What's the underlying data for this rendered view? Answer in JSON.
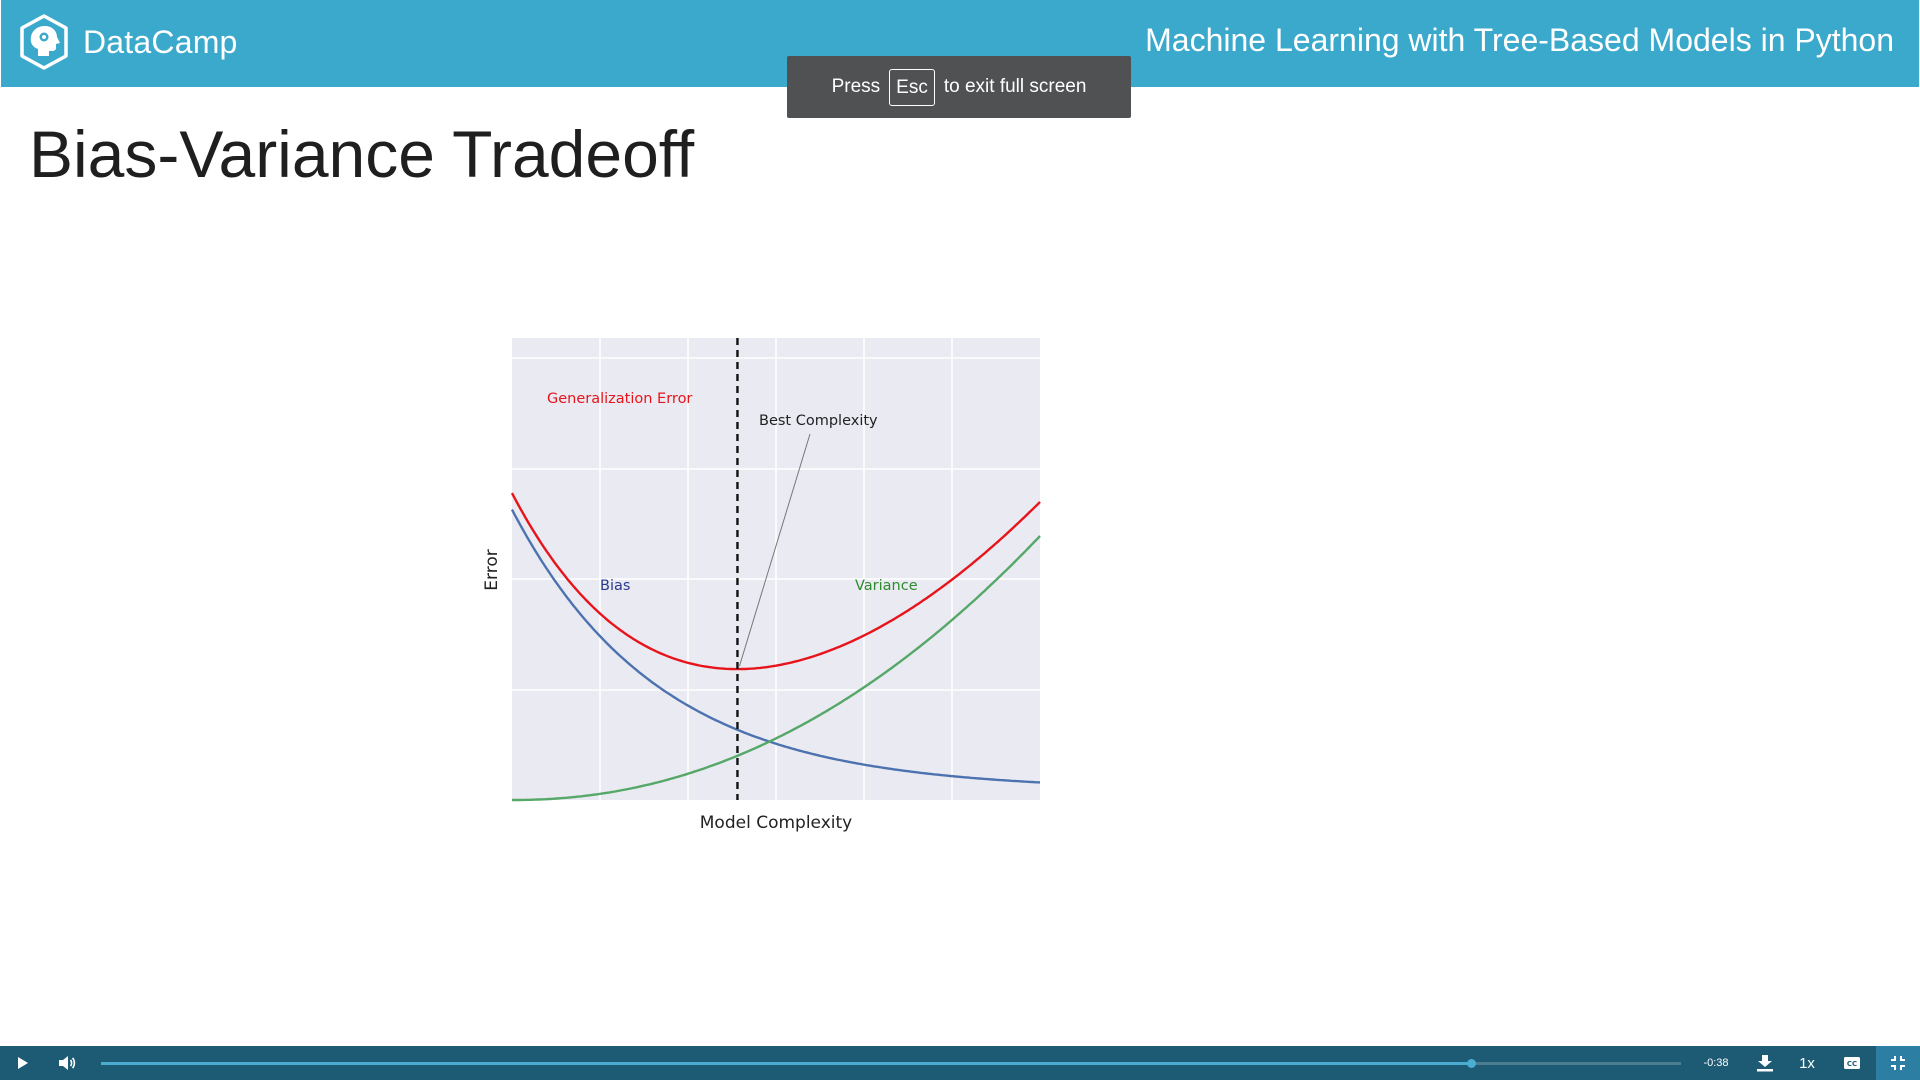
{
  "header": {
    "brand": "DataCamp",
    "course_title": "Machine Learning with Tree-Based Models in Python",
    "brand_color": "#3ba9cb"
  },
  "toast": {
    "prefix": "Press",
    "key": "Esc",
    "suffix": "to exit full screen"
  },
  "slide": {
    "title": "Bias-Variance Tradeoff"
  },
  "chart_data": {
    "type": "line",
    "xlabel": "Model Complexity",
    "ylabel": "Error",
    "ticks_shown": false,
    "grid": true,
    "background": "#eaeaf2",
    "series": [
      {
        "name": "Generalization Error",
        "color": "#e8141c"
      },
      {
        "name": "Bias",
        "color": "#4c72b0"
      },
      {
        "name": "Variance",
        "color": "#55a868"
      }
    ],
    "annotation": {
      "text": "Best Complexity"
    },
    "best_complexity_marker": "dashed vertical line at the minimum of the generalization error"
  },
  "player": {
    "time_remaining": "-0:38",
    "speed": "1x",
    "progress": 0.867,
    "icons": [
      "play-icon",
      "volume-icon",
      "download-icon",
      "captions-icon",
      "exit-fullscreen-icon"
    ]
  }
}
